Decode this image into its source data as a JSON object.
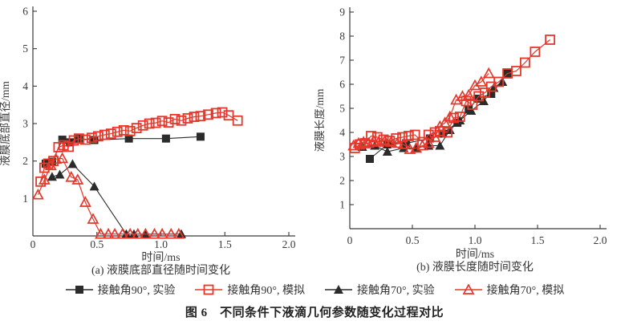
{
  "figure": {
    "caption": "图 6　不同条件下液滴几何参数随变化过程对比"
  },
  "legend": {
    "items": [
      {
        "label": "接触角90°, 实验",
        "marker": "square-filled",
        "color": "#2b2b2b"
      },
      {
        "label": "接触角90°, 模拟",
        "marker": "square-open",
        "color": "#e5382b"
      },
      {
        "label": "接触角70°, 实验",
        "marker": "triangle-filled",
        "color": "#2b2b2b"
      },
      {
        "label": "接触角70°, 模拟",
        "marker": "triangle-open",
        "color": "#e5382b"
      }
    ]
  },
  "chart_data": [
    {
      "type": "scatter",
      "subcaption": "(a) 液膜底部直径随时间变化",
      "xlabel": "时间/ms",
      "ylabel": "液膜底部直径/mm",
      "xlim": [
        0,
        2.0
      ],
      "ylim": [
        0,
        6
      ],
      "grid": false,
      "xticks": [
        {
          "v": 0,
          "label": "0"
        },
        {
          "v": 0.5,
          "label": "0.5"
        },
        {
          "v": 1.0,
          "label": "1.0"
        },
        {
          "v": 1.5,
          "label": "1.5"
        },
        {
          "v": 2.0,
          "label": "2.0"
        }
      ],
      "yticks": [
        {
          "v": 1,
          "label": "1"
        },
        {
          "v": 2,
          "label": "2"
        },
        {
          "v": 3,
          "label": "3"
        },
        {
          "v": 4,
          "label": "4"
        },
        {
          "v": 5,
          "label": "5"
        },
        {
          "v": 6,
          "label": "6"
        }
      ],
      "series": [
        {
          "name": "接触角90°, 实验",
          "marker": "square-filled",
          "color": "#2b2b2b",
          "points": [
            [
              0.1,
              1.93
            ],
            [
              0.15,
              1.98
            ],
            [
              0.23,
              2.57
            ],
            [
              0.29,
              2.5
            ],
            [
              0.36,
              2.6
            ],
            [
              0.48,
              2.56
            ],
            [
              0.75,
              2.6
            ],
            [
              1.04,
              2.6
            ],
            [
              1.31,
              2.65
            ]
          ]
        },
        {
          "name": "接触角70°, 实验",
          "marker": "triangle-filled",
          "color": "#2b2b2b",
          "points": [
            [
              0.15,
              1.58
            ],
            [
              0.21,
              1.64
            ],
            [
              0.31,
              1.92
            ],
            [
              0.48,
              1.32
            ],
            [
              0.73,
              0.05
            ],
            [
              0.79,
              0.05
            ],
            [
              0.88,
              0.05
            ],
            [
              1.16,
              0.05
            ]
          ]
        },
        {
          "name": "接触角90°, 模拟",
          "marker": "square-open",
          "color": "#e5382b",
          "points": [
            [
              0.06,
              1.45
            ],
            [
              0.09,
              1.82
            ],
            [
              0.12,
              1.93
            ],
            [
              0.16,
              2.0
            ],
            [
              0.2,
              2.37
            ],
            [
              0.24,
              2.42
            ],
            [
              0.28,
              2.38
            ],
            [
              0.32,
              2.55
            ],
            [
              0.36,
              2.6
            ],
            [
              0.41,
              2.57
            ],
            [
              0.46,
              2.62
            ],
            [
              0.51,
              2.66
            ],
            [
              0.56,
              2.7
            ],
            [
              0.61,
              2.73
            ],
            [
              0.66,
              2.78
            ],
            [
              0.71,
              2.82
            ],
            [
              0.76,
              2.8
            ],
            [
              0.81,
              2.88
            ],
            [
              0.86,
              2.95
            ],
            [
              0.91,
              3.0
            ],
            [
              0.96,
              3.02
            ],
            [
              1.01,
              3.07
            ],
            [
              1.06,
              3.03
            ],
            [
              1.11,
              3.12
            ],
            [
              1.16,
              3.08
            ],
            [
              1.21,
              3.14
            ],
            [
              1.26,
              3.18
            ],
            [
              1.31,
              3.2
            ],
            [
              1.37,
              3.24
            ],
            [
              1.43,
              3.28
            ],
            [
              1.48,
              3.3
            ],
            [
              1.53,
              3.22
            ],
            [
              1.6,
              3.08
            ]
          ]
        },
        {
          "name": "接触角70°, 模拟",
          "marker": "triangle-open",
          "color": "#e5382b",
          "points": [
            [
              0.04,
              1.1
            ],
            [
              0.09,
              1.5
            ],
            [
              0.14,
              1.88
            ],
            [
              0.18,
              2.05
            ],
            [
              0.23,
              2.07
            ],
            [
              0.3,
              1.57
            ],
            [
              0.35,
              1.5
            ],
            [
              0.41,
              0.9
            ],
            [
              0.47,
              0.45
            ],
            [
              0.53,
              0.05
            ],
            [
              0.59,
              0.05
            ],
            [
              0.64,
              0.05
            ],
            [
              0.7,
              0.05
            ],
            [
              0.76,
              0.05
            ],
            [
              0.82,
              0.05
            ],
            [
              0.88,
              0.05
            ],
            [
              0.95,
              0.05
            ],
            [
              1.01,
              0.05
            ],
            [
              1.08,
              0.05
            ],
            [
              1.14,
              0.05
            ]
          ]
        }
      ]
    },
    {
      "type": "scatter",
      "subcaption": "(b) 液膜长度随时间变化",
      "xlabel": "时间/ms",
      "ylabel": "液膜长度/mm",
      "xlim": [
        0,
        2.0
      ],
      "ylim": [
        0,
        9
      ],
      "grid": false,
      "xticks": [
        {
          "v": 0,
          "label": "0"
        },
        {
          "v": 0.5,
          "label": "0.5"
        },
        {
          "v": 1.0,
          "label": "1.0"
        },
        {
          "v": 1.5,
          "label": "1.5"
        },
        {
          "v": 2.0,
          "label": "2.0"
        }
      ],
      "yticks": [
        {
          "v": 1,
          "label": "1"
        },
        {
          "v": 2,
          "label": "2"
        },
        {
          "v": 3,
          "label": "3"
        },
        {
          "v": 4,
          "label": "4"
        },
        {
          "v": 5,
          "label": "5"
        },
        {
          "v": 6,
          "label": "6"
        },
        {
          "v": 7,
          "label": "7"
        },
        {
          "v": 8,
          "label": "8"
        },
        {
          "v": 9,
          "label": "9"
        }
      ],
      "series": [
        {
          "name": "接触角90°, 实验",
          "marker": "square-filled",
          "color": "#2b2b2b",
          "points": [
            [
              0.16,
              2.9
            ],
            [
              0.3,
              3.5
            ],
            [
              0.45,
              3.55
            ],
            [
              0.64,
              3.75
            ],
            [
              0.74,
              3.95
            ],
            [
              0.86,
              4.4
            ],
            [
              0.95,
              4.95
            ],
            [
              1.02,
              5.4
            ],
            [
              1.13,
              5.6
            ],
            [
              1.26,
              6.45
            ]
          ]
        },
        {
          "name": "接触角70°, 实验",
          "marker": "triangle-filled",
          "color": "#2b2b2b",
          "points": [
            [
              0.1,
              3.4
            ],
            [
              0.2,
              3.45
            ],
            [
              0.3,
              3.2
            ],
            [
              0.43,
              3.35
            ],
            [
              0.53,
              3.35
            ],
            [
              0.63,
              3.45
            ],
            [
              0.72,
              3.45
            ],
            [
              0.8,
              4.1
            ],
            [
              0.88,
              4.5
            ],
            [
              0.97,
              4.9
            ],
            [
              1.07,
              5.3
            ],
            [
              1.15,
              5.85
            ],
            [
              1.22,
              6.1
            ]
          ]
        },
        {
          "name": "接触角90°, 模拟",
          "marker": "square-open",
          "color": "#e5382b",
          "points": [
            [
              0.04,
              3.35
            ],
            [
              0.08,
              3.5
            ],
            [
              0.12,
              3.55
            ],
            [
              0.17,
              3.85
            ],
            [
              0.22,
              3.8
            ],
            [
              0.27,
              3.7
            ],
            [
              0.32,
              3.65
            ],
            [
              0.37,
              3.75
            ],
            [
              0.42,
              3.8
            ],
            [
              0.47,
              3.85
            ],
            [
              0.52,
              3.9
            ],
            [
              0.58,
              3.6
            ],
            [
              0.63,
              3.9
            ],
            [
              0.68,
              4.0
            ],
            [
              0.72,
              4.05
            ],
            [
              0.78,
              4.0
            ],
            [
              0.83,
              4.6
            ],
            [
              0.88,
              4.65
            ],
            [
              0.93,
              5.3
            ],
            [
              0.98,
              5.15
            ],
            [
              1.03,
              5.5
            ],
            [
              1.08,
              5.65
            ],
            [
              1.13,
              5.9
            ],
            [
              1.19,
              6.1
            ],
            [
              1.26,
              6.45
            ],
            [
              1.33,
              6.55
            ],
            [
              1.4,
              6.9
            ],
            [
              1.48,
              7.35
            ],
            [
              1.6,
              7.85
            ]
          ]
        },
        {
          "name": "接触角70°, 模拟",
          "marker": "triangle-open",
          "color": "#e5382b",
          "points": [
            [
              0.03,
              3.45
            ],
            [
              0.07,
              3.55
            ],
            [
              0.11,
              3.6
            ],
            [
              0.15,
              3.55
            ],
            [
              0.19,
              3.65
            ],
            [
              0.23,
              3.6
            ],
            [
              0.28,
              3.65
            ],
            [
              0.33,
              3.6
            ],
            [
              0.38,
              3.55
            ],
            [
              0.43,
              3.5
            ],
            [
              0.48,
              3.3
            ],
            [
              0.53,
              3.35
            ],
            [
              0.58,
              3.45
            ],
            [
              0.63,
              3.55
            ],
            [
              0.68,
              3.8
            ],
            [
              0.72,
              4.25
            ],
            [
              0.76,
              4.4
            ],
            [
              0.8,
              4.65
            ],
            [
              0.85,
              5.35
            ],
            [
              0.9,
              5.5
            ],
            [
              0.95,
              5.55
            ],
            [
              1.0,
              5.95
            ],
            [
              1.05,
              6.1
            ],
            [
              1.11,
              6.45
            ]
          ]
        }
      ]
    }
  ]
}
